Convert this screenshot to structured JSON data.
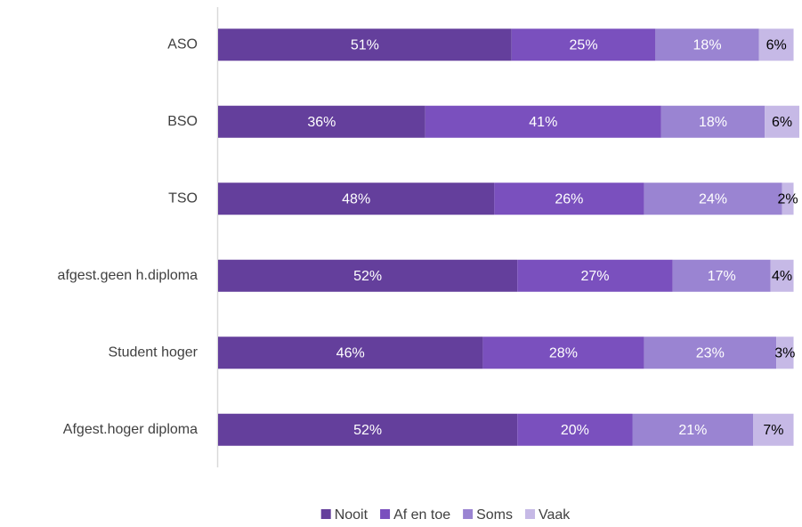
{
  "chart_data": {
    "type": "stacked-bar-horizontal",
    "categories": [
      "ASO",
      "BSO",
      "TSO",
      "afgest.geen h.diploma",
      "Student hoger",
      "Afgest.hoger diploma"
    ],
    "series": [
      {
        "name": "Nooit",
        "color": "#643f9c",
        "label_color": "#ffffff",
        "values": [
          51,
          36,
          48,
          52,
          46,
          52
        ],
        "value_labels": [
          "51%",
          "36%",
          "48%",
          "52%",
          "46%",
          "52%"
        ]
      },
      {
        "name": "Af en toe",
        "color": "#7a50be",
        "label_color": "#ffffff",
        "values": [
          25,
          41,
          26,
          27,
          28,
          20
        ],
        "value_labels": [
          "25%",
          "41%",
          "26%",
          "27%",
          "28%",
          "20%"
        ]
      },
      {
        "name": "Soms",
        "color": "#9a84d2",
        "label_color": "#ffffff",
        "values": [
          18,
          18,
          24,
          17,
          23,
          21
        ],
        "value_labels": [
          "18%",
          "18%",
          "24%",
          "17%",
          "23%",
          "21%"
        ]
      },
      {
        "name": "Vaak",
        "color": "#c6b9e6",
        "label_color": "#000000",
        "values": [
          6,
          6,
          2,
          4,
          3,
          7
        ],
        "value_labels": [
          "6%",
          "6%",
          "2%",
          "4%",
          "3%",
          "7%"
        ]
      }
    ],
    "legend": "bottom"
  }
}
